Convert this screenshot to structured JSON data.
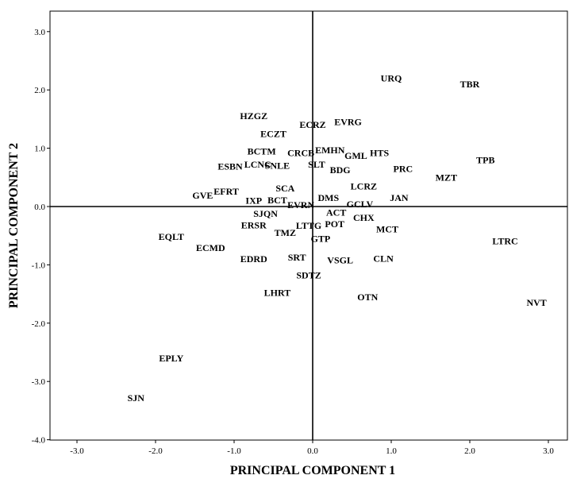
{
  "chart_data": {
    "type": "scatter",
    "xlabel": "PRINCIPAL COMPONENT 1",
    "ylabel": "PRINCIPAL COMPONENT 2",
    "xlim": [
      -3.3,
      3.3
    ],
    "ylim": [
      -4.0,
      3.3
    ],
    "xticks": [
      "-3.0",
      "-2.0",
      "-1.0",
      "0.0",
      "1.0",
      "2.0",
      "3.0"
    ],
    "yticks": [
      "3.0",
      "2.0",
      "1.0",
      "0.0",
      "-1.0",
      "-2.0",
      "-3.0",
      "-4.0"
    ],
    "grid": false,
    "points": [
      {
        "label": "URQ",
        "x": 1.0,
        "y": 2.2
      },
      {
        "label": "TBR",
        "x": 2.0,
        "y": 2.1
      },
      {
        "label": "TPB",
        "x": 2.2,
        "y": 0.8
      },
      {
        "label": "MZT",
        "x": 1.7,
        "y": 0.5
      },
      {
        "label": "PRC",
        "x": 1.15,
        "y": 0.65
      },
      {
        "label": "JAN",
        "x": 1.1,
        "y": 0.15
      },
      {
        "label": "HZGZ",
        "x": -0.75,
        "y": 1.55
      },
      {
        "label": "ECZT",
        "x": -0.5,
        "y": 1.25
      },
      {
        "label": "ECRZ",
        "x": 0.0,
        "y": 1.4
      },
      {
        "label": "EVRG",
        "x": 0.45,
        "y": 1.45
      },
      {
        "label": "BCTM",
        "x": -0.65,
        "y": 0.95
      },
      {
        "label": "CRCB",
        "x": -0.15,
        "y": 0.92
      },
      {
        "label": "EMHN",
        "x": 0.22,
        "y": 0.97
      },
      {
        "label": "GML",
        "x": 0.55,
        "y": 0.87
      },
      {
        "label": "HTS",
        "x": 0.85,
        "y": 0.92
      },
      {
        "label": "ESBN",
        "x": -1.05,
        "y": 0.69
      },
      {
        "label": "LCNC",
        "x": -0.7,
        "y": 0.72
      },
      {
        "label": "SNLE",
        "x": -0.45,
        "y": 0.7
      },
      {
        "label": "SLT",
        "x": 0.05,
        "y": 0.72
      },
      {
        "label": "BDG",
        "x": 0.35,
        "y": 0.63
      },
      {
        "label": "LCRZ",
        "x": 0.65,
        "y": 0.35
      },
      {
        "label": "EFRT",
        "x": -1.1,
        "y": 0.26
      },
      {
        "label": "GVE",
        "x": -1.4,
        "y": 0.19
      },
      {
        "label": "SCA",
        "x": -0.35,
        "y": 0.31
      },
      {
        "label": "IXP",
        "x": -0.75,
        "y": 0.1
      },
      {
        "label": "BCT",
        "x": -0.45,
        "y": 0.11
      },
      {
        "label": "EVRN",
        "x": -0.15,
        "y": 0.03
      },
      {
        "label": "DMS",
        "x": 0.2,
        "y": 0.15
      },
      {
        "label": "GCLV",
        "x": 0.6,
        "y": 0.04
      },
      {
        "label": "SJQN",
        "x": -0.6,
        "y": -0.12
      },
      {
        "label": "ACT",
        "x": 0.3,
        "y": -0.1
      },
      {
        "label": "CHX",
        "x": 0.65,
        "y": -0.19
      },
      {
        "label": "ERSR",
        "x": -0.75,
        "y": -0.32
      },
      {
        "label": "LTTG",
        "x": -0.05,
        "y": -0.33
      },
      {
        "label": "POT",
        "x": 0.28,
        "y": -0.3
      },
      {
        "label": "MCT",
        "x": 0.95,
        "y": -0.39
      },
      {
        "label": "TMZ",
        "x": -0.35,
        "y": -0.45
      },
      {
        "label": "GTP",
        "x": 0.1,
        "y": -0.55
      },
      {
        "label": "EQLT",
        "x": -1.8,
        "y": -0.52
      },
      {
        "label": "ECMD",
        "x": -1.3,
        "y": -0.71
      },
      {
        "label": "EDRD",
        "x": -0.75,
        "y": -0.9
      },
      {
        "label": "SRT",
        "x": -0.2,
        "y": -0.87
      },
      {
        "label": "VSGL",
        "x": 0.35,
        "y": -0.92
      },
      {
        "label": "CLN",
        "x": 0.9,
        "y": -0.89
      },
      {
        "label": "LTRC",
        "x": 2.45,
        "y": -0.59
      },
      {
        "label": "SDTZ",
        "x": -0.05,
        "y": -1.18
      },
      {
        "label": "LHRT",
        "x": -0.45,
        "y": -1.48
      },
      {
        "label": "OTN",
        "x": 0.7,
        "y": -1.55
      },
      {
        "label": "NVT",
        "x": 2.85,
        "y": -1.65
      },
      {
        "label": "EPLY",
        "x": -1.8,
        "y": -2.6
      },
      {
        "label": "SJN",
        "x": -2.25,
        "y": -3.28
      }
    ]
  }
}
